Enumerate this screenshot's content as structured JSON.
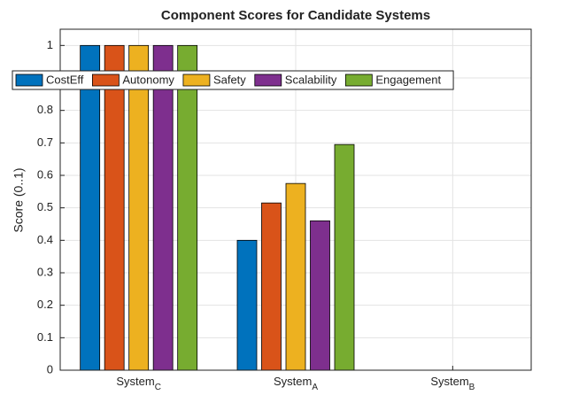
{
  "chart_data": {
    "type": "bar",
    "title": "Component Scores for Candidate Systems",
    "y_label": "Score (0..1)",
    "categories": [
      {
        "text": "System",
        "sub": "C"
      },
      {
        "text": "System",
        "sub": "A"
      },
      {
        "text": "System",
        "sub": "B"
      }
    ],
    "series": [
      {
        "name": "CostEff",
        "color": "#0072BD",
        "values": [
          1,
          0.4,
          0
        ]
      },
      {
        "name": "Autonomy",
        "color": "#D95319",
        "values": [
          1,
          0.515,
          0
        ]
      },
      {
        "name": "Safety",
        "color": "#EDB120",
        "values": [
          1,
          0.575,
          0
        ]
      },
      {
        "name": "Scalability",
        "color": "#7E2F8E",
        "values": [
          1,
          0.46,
          0
        ]
      },
      {
        "name": "Engagement",
        "color": "#77AC30",
        "values": [
          1,
          0.695,
          0
        ]
      }
    ],
    "ylim": [
      0,
      1.05
    ],
    "yticks": [
      0,
      0.1,
      0.2,
      0.3,
      0.4,
      0.5,
      0.6,
      0.7,
      0.8,
      0.9,
      1
    ],
    "grid": true,
    "legend": "top"
  }
}
